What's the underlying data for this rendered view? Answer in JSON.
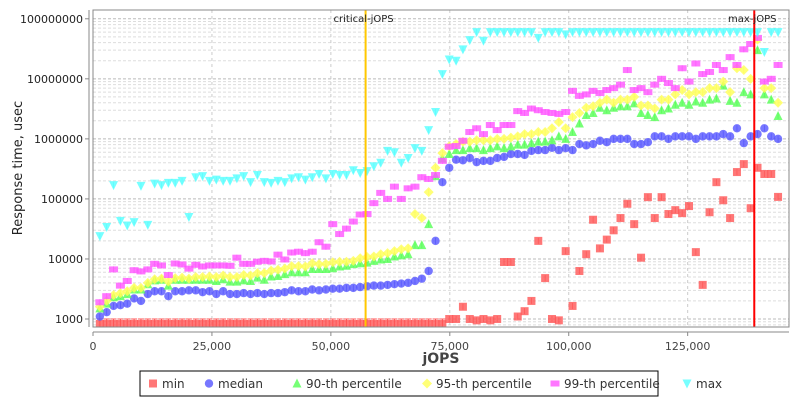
{
  "chart_data": {
    "type": "scatter",
    "title": "",
    "xlabel": "jOPS",
    "ylabel": "Response time, usec",
    "xlim": [
      0,
      146300
    ],
    "ylim": [
      736,
      140000000
    ],
    "yscale": "log",
    "grid": true,
    "legend_position": "bottom",
    "x_ticks": [
      0,
      25000,
      50000,
      75000,
      100000,
      125000
    ],
    "x_tick_labels": [
      "0",
      "25,000",
      "50,000",
      "75,000",
      "100,000",
      "125,000"
    ],
    "y_ticks": [
      1000,
      10000,
      100000,
      1000000,
      10000000,
      100000000
    ],
    "y_tick_labels": [
      "1000",
      "10000",
      "100000",
      "1000000",
      "10000000",
      "100000000"
    ],
    "markers": [
      {
        "label": "critical-jOPS",
        "x": 57300,
        "color": "#ffc800"
      },
      {
        "label": "max-jOPS",
        "x": 139000,
        "color": "#ff0000"
      }
    ],
    "x": [
      1440,
      2880,
      4320,
      5760,
      7200,
      8640,
      10080,
      11520,
      12960,
      14400,
      15840,
      17280,
      18720,
      20160,
      21600,
      23040,
      24480,
      25920,
      27360,
      28800,
      30240,
      31680,
      33120,
      34560,
      36000,
      37440,
      38880,
      40320,
      41760,
      43200,
      44640,
      46080,
      47520,
      48960,
      50400,
      51840,
      53280,
      54720,
      56160,
      57600,
      59040,
      60480,
      61920,
      63360,
      64800,
      66240,
      67680,
      69120,
      70560,
      72000,
      73440,
      74880,
      76320,
      77760,
      79200,
      80640,
      82080,
      83520,
      84960,
      86400,
      87840,
      89280,
      90720,
      92160,
      93600,
      95040,
      96480,
      97920,
      99360,
      100800,
      102240,
      103680,
      105120,
      106560,
      108000,
      109440,
      110880,
      112320,
      113760,
      115200,
      116640,
      118080,
      119520,
      120960,
      122400,
      123840,
      125280,
      126720,
      128160,
      129600,
      131040,
      132480,
      133920,
      135360,
      136800,
      138240,
      139680,
      141120,
      142560,
      144000
    ],
    "series": [
      {
        "name": "min",
        "color": "#ff5555",
        "marker": "square",
        "values": [
          700,
          700,
          700,
          700,
          700,
          700,
          700,
          700,
          700,
          700,
          700,
          700,
          700,
          700,
          700,
          700,
          700,
          700,
          700,
          700,
          700,
          700,
          700,
          700,
          700,
          700,
          700,
          700,
          700,
          700,
          700,
          700,
          700,
          700,
          700,
          700,
          700,
          700,
          700,
          700,
          700,
          700,
          700,
          700,
          700,
          700,
          700,
          700,
          700,
          700,
          700,
          1000,
          1000,
          1600,
          1000,
          950,
          1000,
          950,
          1000,
          8900,
          8900,
          1100,
          1350,
          2000,
          20000,
          4800,
          1000,
          950,
          13500,
          1650,
          6300,
          12000,
          45000,
          15000,
          21000,
          30000,
          48000,
          83000,
          38000,
          10500,
          107000,
          48000,
          107000,
          56000,
          65000,
          58000,
          76000,
          13000,
          3700,
          60000,
          190000,
          95000,
          48000,
          280000,
          380000,
          70000,
          330000,
          260000,
          260000,
          108000
        ]
      },
      {
        "name": "median",
        "color": "#5555ff",
        "marker": "circle",
        "values": [
          1100,
          1300,
          1650,
          1700,
          1800,
          2200,
          2000,
          2600,
          2900,
          2900,
          2400,
          2900,
          2900,
          3000,
          3000,
          2800,
          2900,
          2600,
          2900,
          2600,
          2600,
          2700,
          2600,
          2700,
          2600,
          2700,
          2700,
          2800,
          3000,
          2900,
          2900,
          3100,
          3000,
          3100,
          3200,
          3200,
          3300,
          3300,
          3400,
          3500,
          3600,
          3600,
          3700,
          3800,
          3900,
          4000,
          4300,
          4700,
          6300,
          20000,
          190000,
          330000,
          450000,
          440000,
          480000,
          410000,
          430000,
          430000,
          480000,
          500000,
          560000,
          560000,
          540000,
          630000,
          650000,
          650000,
          710000,
          650000,
          700000,
          650000,
          820000,
          780000,
          820000,
          930000,
          880000,
          1000000,
          1000000,
          1000000,
          820000,
          820000,
          880000,
          1100000,
          1100000,
          1000000,
          1100000,
          1100000,
          1100000,
          1000000,
          1100000,
          1100000,
          1100000,
          1200000,
          1100000,
          1500000,
          850000,
          1100000,
          1200000,
          1500000,
          1100000,
          1000000
        ]
      },
      {
        "name": "90-th percentile",
        "color": "#55ff55",
        "marker": "triangle-up",
        "values": [
          1500,
          1800,
          2300,
          2400,
          2600,
          3100,
          3100,
          3800,
          4400,
          4500,
          3600,
          4500,
          4500,
          4500,
          4500,
          4500,
          4500,
          4300,
          4600,
          4200,
          4200,
          4400,
          4300,
          4900,
          4500,
          5100,
          5200,
          5600,
          6000,
          6000,
          6000,
          6800,
          6800,
          6800,
          7000,
          7500,
          7700,
          8200,
          8500,
          8700,
          9300,
          9800,
          10000,
          11000,
          11500,
          12000,
          17000,
          17000,
          38000,
          240000,
          470000,
          560000,
          650000,
          650000,
          700000,
          700000,
          650000,
          700000,
          750000,
          700000,
          750000,
          800000,
          800000,
          850000,
          900000,
          900000,
          950000,
          1100000,
          1000000,
          1300000,
          1800000,
          2500000,
          2700000,
          3300000,
          3000000,
          3300000,
          3500000,
          3500000,
          3900000,
          2700000,
          2500000,
          2300000,
          3000000,
          3200000,
          3700000,
          4000000,
          3700000,
          4200000,
          4000000,
          4500000,
          4700000,
          7700000,
          4300000,
          4000000,
          6000000,
          5500000,
          30000000,
          5500000,
          4500000,
          2400000
        ]
      },
      {
        "name": "95-th percentile",
        "color": "#ffff55",
        "marker": "diamond",
        "values": [
          1600,
          2000,
          2500,
          2700,
          2900,
          3300,
          3300,
          4000,
          4600,
          4700,
          4200,
          4800,
          4900,
          4700,
          5000,
          5000,
          5100,
          5000,
          5300,
          5000,
          5000,
          5400,
          5300,
          5800,
          5800,
          6400,
          6600,
          6900,
          7600,
          7600,
          7500,
          8500,
          8200,
          8300,
          8800,
          9000,
          9000,
          9300,
          10300,
          10800,
          11000,
          12000,
          12500,
          13500,
          14500,
          15000,
          56000,
          48000,
          130000,
          330000,
          580000,
          750000,
          820000,
          900000,
          900000,
          950000,
          950000,
          950000,
          1000000,
          1000000,
          1050000,
          1100000,
          1200000,
          1200000,
          1300000,
          1300000,
          1500000,
          1900000,
          1500000,
          2300000,
          2700000,
          3300000,
          3500000,
          4000000,
          4500000,
          4000000,
          4500000,
          4500000,
          5000000,
          3600000,
          3600000,
          3200000,
          4500000,
          4500000,
          5500000,
          6500000,
          5500000,
          6000000,
          6000000,
          7000000,
          7000000,
          9000000,
          6000000,
          15000000,
          14000000,
          10000000,
          45000000,
          7000000,
          7000000,
          4000000
        ]
      },
      {
        "name": "99-th percentile",
        "color": "#ff55ff",
        "marker": "rect",
        "values": [
          1900,
          2400,
          6700,
          3600,
          4300,
          6500,
          6200,
          6700,
          8300,
          7800,
          5400,
          8400,
          8100,
          6900,
          8000,
          7500,
          7800,
          7800,
          7800,
          7700,
          10500,
          8300,
          8300,
          9000,
          9300,
          9100,
          11800,
          9800,
          12800,
          13200,
          12500,
          13200,
          19000,
          16000,
          38000,
          26000,
          32000,
          42000,
          55000,
          56000,
          85000,
          126000,
          100000,
          160000,
          100000,
          150000,
          160000,
          230000,
          215000,
          250000,
          430000,
          740000,
          760000,
          930000,
          1300000,
          1500000,
          1200000,
          1700000,
          1400000,
          1700000,
          1700000,
          2900000,
          2700000,
          3200000,
          3000000,
          2800000,
          2700000,
          2600000,
          2800000,
          6300000,
          5200000,
          5500000,
          6300000,
          5800000,
          6500000,
          7000000,
          8000000,
          14000000,
          6500000,
          7000000,
          6000000,
          8000000,
          10000000,
          8500000,
          7000000,
          15000000,
          9000000,
          18000000,
          12000000,
          13000000,
          17000000,
          14000000,
          23000000,
          17000000,
          31000000,
          38000000,
          48000000,
          9000000,
          10000000,
          17000000
        ]
      },
      {
        "name": "max",
        "color": "#55ffff",
        "marker": "triangle-down",
        "values": [
          24000,
          34000,
          170000,
          43000,
          36000,
          41000,
          165000,
          37000,
          180000,
          170000,
          185000,
          185000,
          200000,
          50000,
          230000,
          240000,
          200000,
          210000,
          200000,
          200000,
          220000,
          240000,
          190000,
          250000,
          190000,
          185000,
          200000,
          190000,
          220000,
          230000,
          210000,
          230000,
          260000,
          220000,
          260000,
          250000,
          250000,
          300000,
          270000,
          290000,
          350000,
          400000,
          630000,
          600000,
          400000,
          480000,
          700000,
          630000,
          1400000,
          2800000,
          12000000,
          21000000,
          20000000,
          31000000,
          44000000,
          60000000,
          43000000,
          60000000,
          60000000,
          60000000,
          60000000,
          60000000,
          60000000,
          60000000,
          48000000,
          60000000,
          60000000,
          60000000,
          55000000,
          60000000,
          60000000,
          60000000,
          60000000,
          60000000,
          60000000,
          60000000,
          60000000,
          60000000,
          60000000,
          60000000,
          60000000,
          60000000,
          60000000,
          60000000,
          60000000,
          60000000,
          60000000,
          60000000,
          60000000,
          60000000,
          60000000,
          60000000,
          60000000,
          60000000,
          60000000,
          60000000,
          60000000,
          28000000,
          60000000,
          60000000
        ]
      }
    ]
  }
}
